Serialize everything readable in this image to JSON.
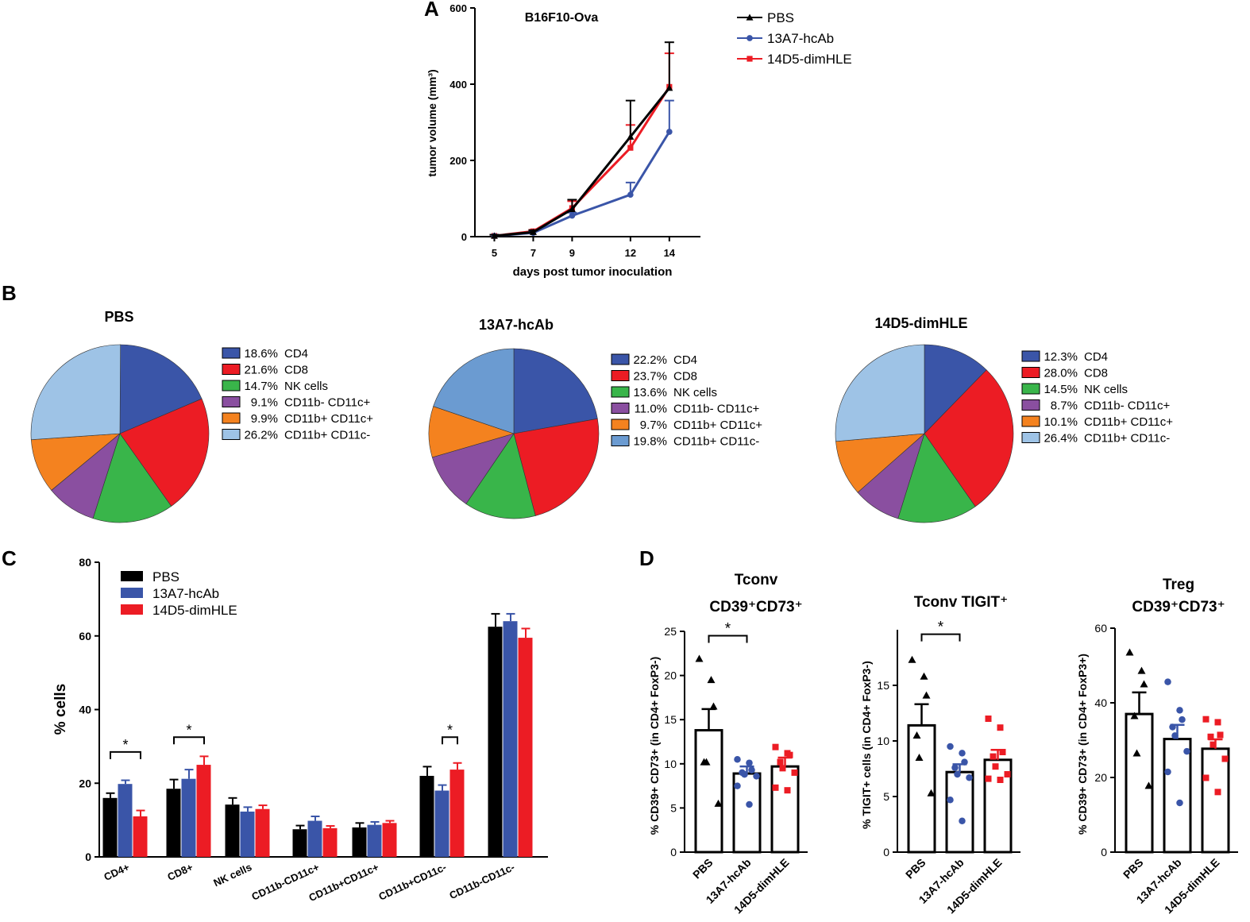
{
  "colors": {
    "black": "#000000",
    "blue": "#3a55a8",
    "red": "#ec1c24",
    "cd4": "#3a55a8",
    "cd8": "#ec1c24",
    "nk": "#39b54a",
    "cd11bneg": "#8a4fa0",
    "cd11bpos": "#f4821f",
    "cd11bc": "#9ec3e6"
  },
  "panel_letters": [
    "A",
    "B",
    "C",
    "D"
  ],
  "chart_data": [
    {
      "id": "A",
      "type": "line",
      "title": "B16F10-Ova",
      "xlabel": "days post tumor inoculation",
      "ylabel": "tumor volume (mm³)",
      "x": [
        5,
        7,
        9,
        12,
        14
      ],
      "xtick_labels": [
        "5",
        "7",
        "9",
        "12",
        "14"
      ],
      "ylim": [
        0,
        600
      ],
      "yticks": [
        0,
        200,
        400,
        600
      ],
      "series": [
        {
          "name": "PBS",
          "marker": "triangle",
          "color": "#000000",
          "values": [
            2,
            12,
            72,
            262,
            390
          ],
          "err": [
            3,
            5,
            25,
            95,
            120
          ]
        },
        {
          "name": "13A7-hcAb",
          "marker": "circle",
          "color": "#3a55a8",
          "values": [
            2,
            10,
            55,
            110,
            275
          ],
          "err": [
            3,
            4,
            8,
            32,
            82
          ]
        },
        {
          "name": "14D5-dimHLE",
          "marker": "square",
          "color": "#ec1c24",
          "values": [
            2,
            14,
            75,
            233,
            393
          ],
          "err": [
            3,
            4,
            18,
            60,
            88
          ]
        }
      ],
      "legend": [
        "PBS",
        "13A7-hcAb",
        "14D5-dimHLE"
      ]
    },
    {
      "id": "B",
      "type": "pie",
      "pies": [
        {
          "title": "PBS",
          "slices": [
            {
              "pct": 18.6,
              "label": "18.6%",
              "name": "CD4"
            },
            {
              "pct": 21.6,
              "label": "21.6%",
              "name": "CD8"
            },
            {
              "pct": 14.7,
              "label": "14.7%",
              "name": "NK cells"
            },
            {
              "pct": 9.1,
              "label": "9.1%",
              "name": "CD11b- CD11c+"
            },
            {
              "pct": 9.9,
              "label": "9.9%",
              "name": "CD11b+ CD11c+"
            },
            {
              "pct": 26.2,
              "label": "26.2%",
              "name": "CD11b+ CD11c-"
            }
          ]
        },
        {
          "title": "13A7-hcAb",
          "slices": [
            {
              "pct": 22.2,
              "label": "22.2%",
              "name": "CD4"
            },
            {
              "pct": 23.7,
              "label": "23.7%",
              "name": "CD8"
            },
            {
              "pct": 13.6,
              "label": "13.6%",
              "name": "NK cells"
            },
            {
              "pct": 11.0,
              "label": "11.0%",
              "name": "CD11b- CD11c+"
            },
            {
              "pct": 9.7,
              "label": "9.7%",
              "name": "CD11b+ CD11c+"
            },
            {
              "pct": 19.8,
              "label": "19.8%",
              "name": "CD11b+ CD11c-"
            }
          ]
        },
        {
          "title": "14D5-dimHLE",
          "slices": [
            {
              "pct": 12.3,
              "label": "12.3%",
              "name": "CD4"
            },
            {
              "pct": 28.0,
              "label": "28.0%",
              "name": "CD8"
            },
            {
              "pct": 14.5,
              "label": "14.5%",
              "name": "NK cells"
            },
            {
              "pct": 8.7,
              "label": "8.7%",
              "name": "CD11b- CD11c+"
            },
            {
              "pct": 10.1,
              "label": "10.1%",
              "name": "CD11b+ CD11c+"
            },
            {
              "pct": 26.4,
              "label": "26.4%",
              "name": "CD11b+ CD11c-"
            }
          ]
        }
      ]
    },
    {
      "id": "C",
      "type": "bar",
      "ylabel": "% cells",
      "ylim": [
        0,
        80
      ],
      "yticks": [
        0,
        20,
        40,
        60,
        80
      ],
      "categories": [
        "CD4+",
        "CD8+",
        "NK cells",
        "CD11b-CD11c+",
        "CD11b+CD11c+",
        "CD11b+CD11c-",
        "CD11b-CD11c-"
      ],
      "series": [
        {
          "name": "PBS",
          "color": "#000000",
          "values": [
            16,
            18.5,
            14.2,
            7.5,
            8,
            22,
            62.5
          ],
          "err": [
            1.3,
            2.5,
            1.8,
            1,
            1.2,
            2.5,
            3.5
          ]
        },
        {
          "name": "13A7-hcAb",
          "color": "#3a55a8",
          "values": [
            19.8,
            21.2,
            12.3,
            9.8,
            8.7,
            18,
            64
          ],
          "err": [
            1,
            2.5,
            1.2,
            1.2,
            0.8,
            1.5,
            2
          ]
        },
        {
          "name": "14D5-dimHLE",
          "color": "#ec1c24",
          "values": [
            11,
            25,
            13,
            7.8,
            9.2,
            23.7,
            59.5
          ],
          "err": [
            1.6,
            2.3,
            1,
            0.6,
            0.6,
            1.8,
            2.5
          ]
        }
      ],
      "significance": [
        {
          "from": 0,
          "to": 2,
          "cat": 0,
          "y": 28.5,
          "label": "*"
        },
        {
          "from": 0,
          "to": 2,
          "cat": 1,
          "y": 32.5,
          "label": "*"
        },
        {
          "from": 1,
          "to": 2,
          "cat": 5,
          "y": 32.5,
          "label": "*"
        }
      ],
      "legend": [
        "PBS",
        "13A7-hcAb",
        "14D5-dimHLE"
      ]
    },
    {
      "id": "D",
      "type": "scatter-bar",
      "groups": [
        "PBS",
        "13A7-hcAb",
        "14D5-dimHLE"
      ],
      "plots": [
        {
          "title_lines": [
            "Tconv",
            "CD39⁺CD73⁺"
          ],
          "ylabel": "% CD39+ CD73+ (in CD4+ FoxP3-)",
          "ylim": [
            0,
            25
          ],
          "yticks": [
            0,
            5,
            10,
            15,
            20,
            25
          ],
          "means": [
            13.8,
            8.9,
            9.7
          ],
          "sem": [
            2.4,
            0.8,
            1.0
          ],
          "points": [
            [
              21.9,
              19.5,
              16.5,
              10.2,
              10.2,
              5.5
            ],
            [
              10.5,
              10.1,
              9.3,
              9.0,
              8.8,
              8.6,
              7.5,
              5.4
            ],
            [
              11.9,
              11.2,
              11.0,
              10.2,
              9.5,
              9.0,
              7.3,
              7.0
            ]
          ],
          "sig": {
            "from": 0,
            "to": 1,
            "y": 24.5,
            "label": "*"
          }
        },
        {
          "title_lines": [
            "Tconv TIGIT⁺"
          ],
          "ylabel": "% TIGIT+ cells (in CD4+ FoxP3-)",
          "ylim": [
            0,
            20
          ],
          "yticks": [
            0,
            5,
            10,
            15
          ],
          "means": [
            11.4,
            7.2,
            8.3
          ],
          "sem": [
            1.9,
            0.7,
            0.9
          ],
          "points": [
            [
              17.3,
              15.8,
              14.1,
              10.5,
              8.5,
              5.3
            ],
            [
              9.5,
              8.9,
              8.1,
              7.6,
              7.0,
              6.7,
              4.7,
              2.8
            ],
            [
              12.0,
              11.2,
              9.0,
              8.6,
              7.7,
              7.0,
              6.6,
              6.5
            ]
          ],
          "sig": {
            "from": 0,
            "to": 1,
            "y": 19.6,
            "label": "*"
          }
        },
        {
          "title_lines": [
            "Treg",
            "CD39⁺CD73⁺"
          ],
          "ylabel": "% CD39+ CD73+ (in CD4+ FoxP3+)",
          "ylim": [
            0,
            60
          ],
          "yticks": [
            0,
            20,
            40,
            60
          ],
          "means": [
            37,
            30.3,
            27.7
          ],
          "sem": [
            5.8,
            3.8,
            2.5
          ],
          "points": [
            [
              53.5,
              48.6,
              45.0,
              36.5,
              26.5,
              17.8
            ],
            [
              45.6,
              38.0,
              35.5,
              33.5,
              31.2,
              27.0,
              21.5,
              13.2
            ],
            [
              35.6,
              34.8,
              31.4,
              30.9,
              28.8,
              25.0,
              19.9,
              16.1
            ]
          ],
          "sig": null
        }
      ]
    }
  ]
}
